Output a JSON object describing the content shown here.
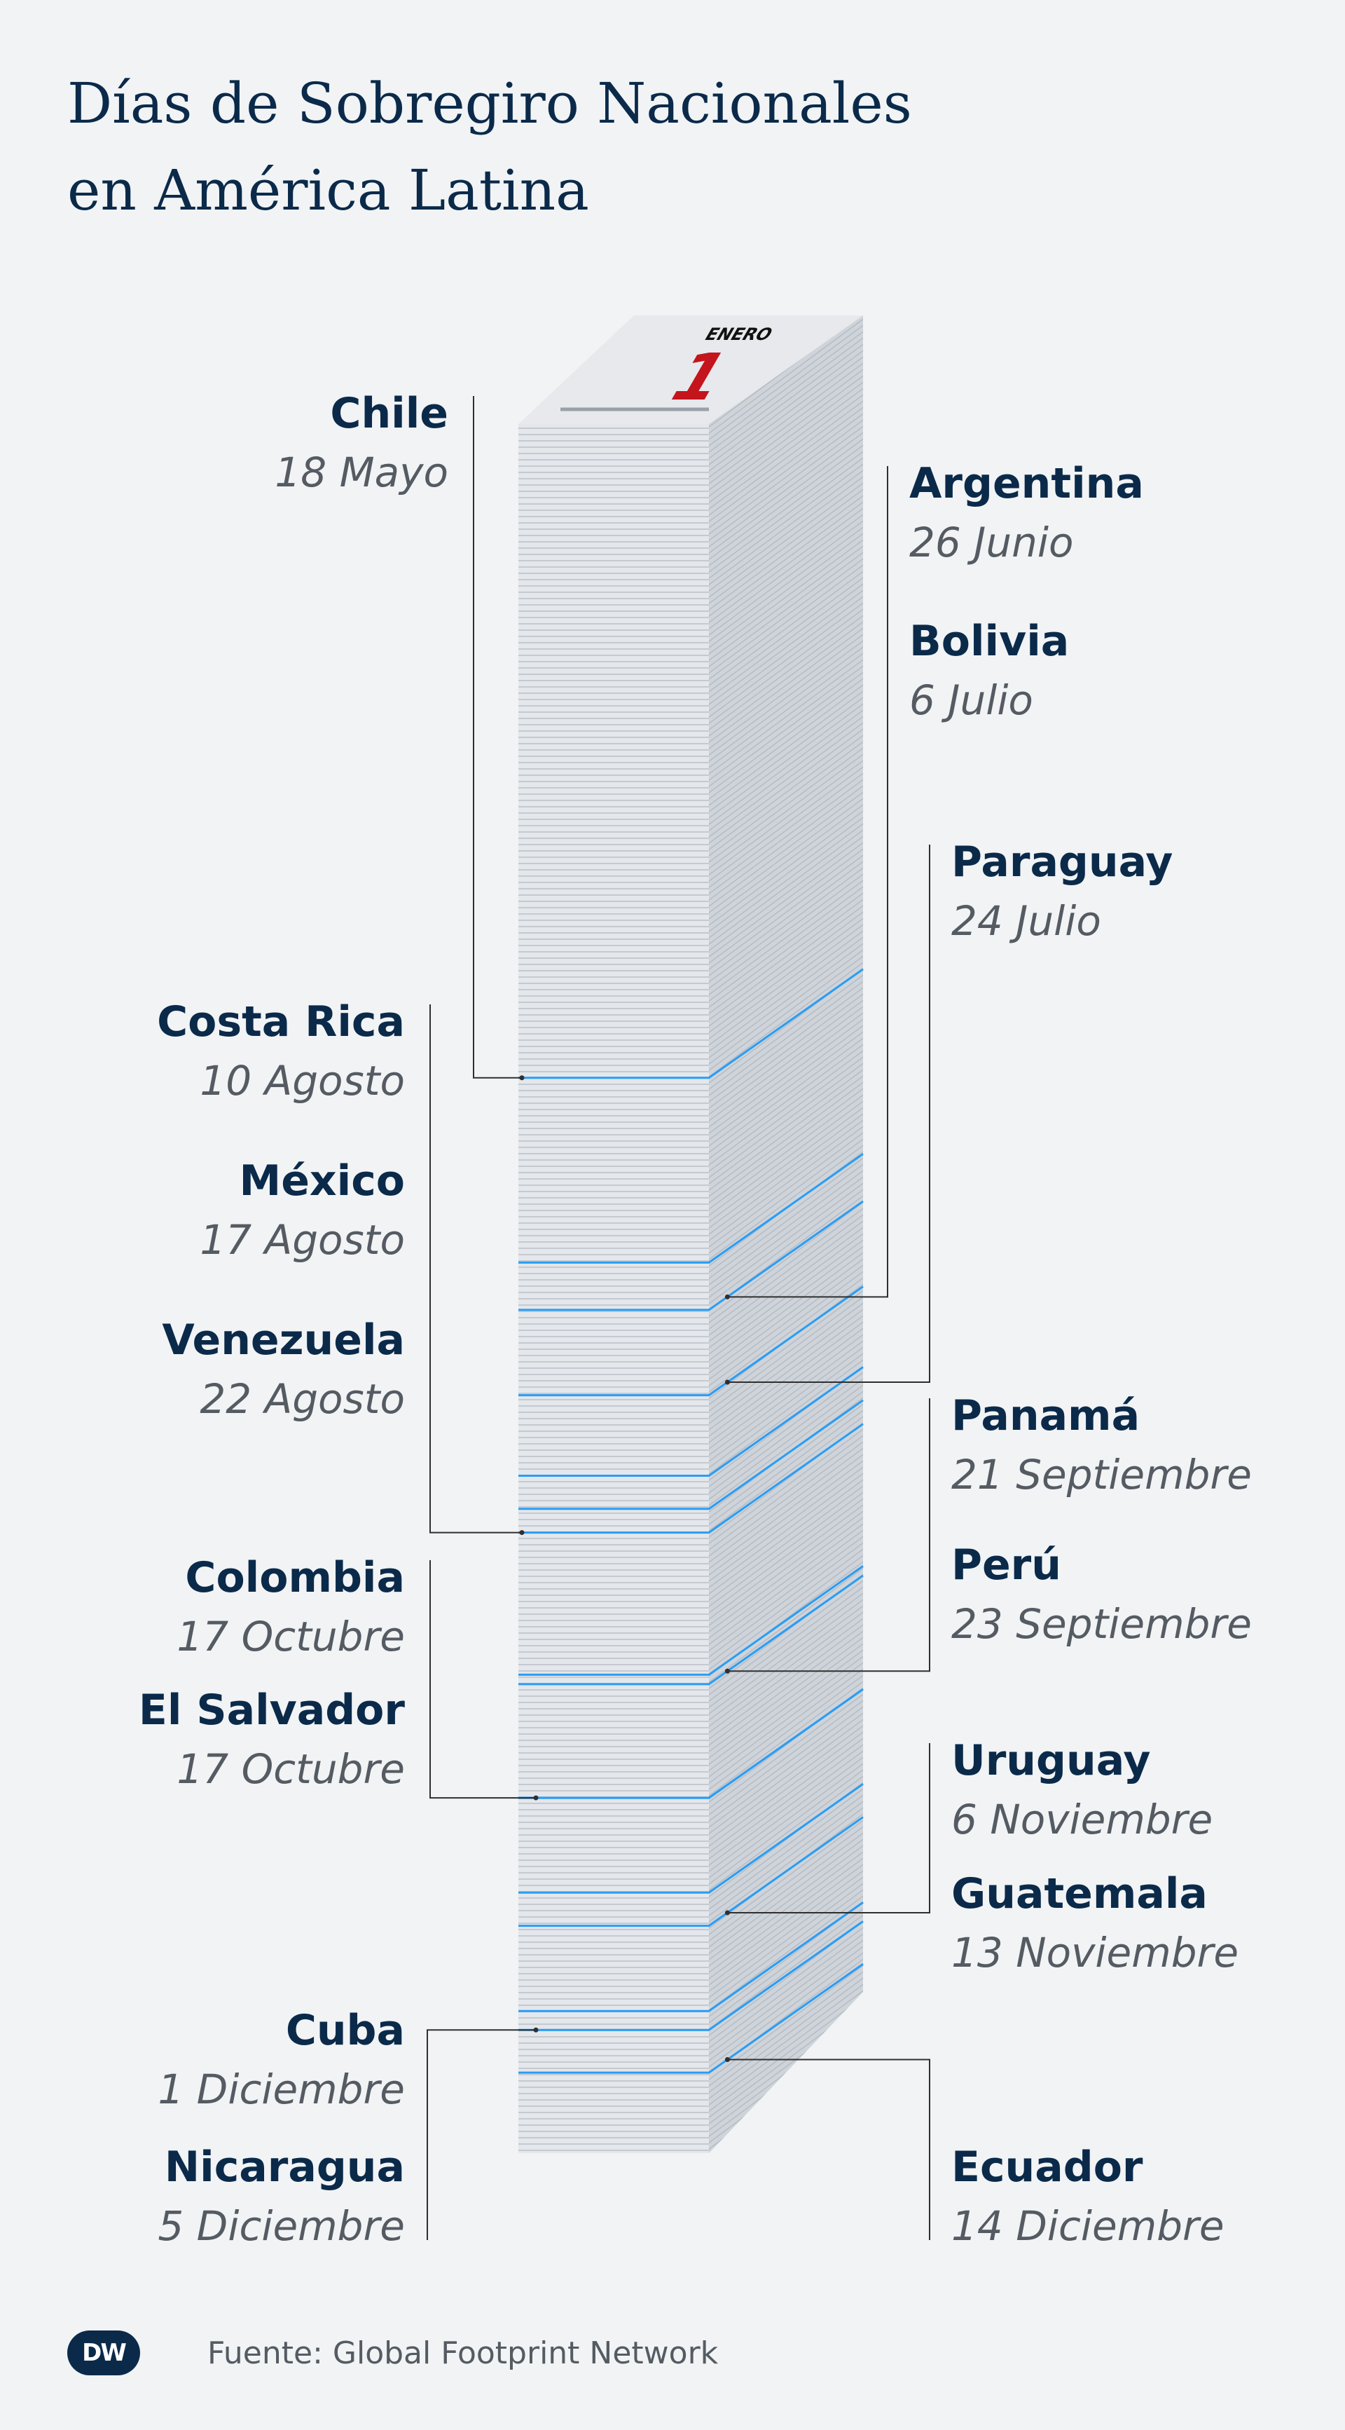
{
  "title_lines": [
    "Días de Sobregiro Nacionales",
    "en América Latina"
  ],
  "source": "Fuente: Global Footprint Network",
  "logo_text": "DW",
  "calendar": {
    "month": "ENERO",
    "day": "1"
  },
  "colors": {
    "title": "#0b2a4a",
    "date": "#555b62",
    "marker": "#2a9df4",
    "leader": "#2f2f2f",
    "accent_red": "#c4141c"
  },
  "chart_data": {
    "type": "timeline",
    "title": "Días de Sobregiro Nacionales en América Latina",
    "axis": "day of year (1 = 1 Enero)",
    "items": [
      {
        "country": "Chile",
        "date": "18 Mayo",
        "day": 138,
        "side": "left"
      },
      {
        "country": "Argentina",
        "date": "26 Junio",
        "day": 177,
        "side": "right"
      },
      {
        "country": "Bolivia",
        "date": "6 Julio",
        "day": 187,
        "side": "right"
      },
      {
        "country": "Paraguay",
        "date": "24 Julio",
        "day": 205,
        "side": "right"
      },
      {
        "country": "Costa Rica",
        "date": "10 Agosto",
        "day": 222,
        "side": "left"
      },
      {
        "country": "México",
        "date": "17 Agosto",
        "day": 229,
        "side": "left"
      },
      {
        "country": "Venezuela",
        "date": "22 Agosto",
        "day": 234,
        "side": "left"
      },
      {
        "country": "Panamá",
        "date": "21 Septiembre",
        "day": 264,
        "side": "right"
      },
      {
        "country": "Perú",
        "date": "23 Septiembre",
        "day": 266,
        "side": "right"
      },
      {
        "country": "Colombia",
        "date": "17 Octubre",
        "day": 290,
        "side": "left"
      },
      {
        "country": "El Salvador",
        "date": "17 Octubre",
        "day": 290,
        "side": "left"
      },
      {
        "country": "Uruguay",
        "date": "6 Noviembre",
        "day": 310,
        "side": "right"
      },
      {
        "country": "Guatemala",
        "date": "13 Noviembre",
        "day": 317,
        "side": "right"
      },
      {
        "country": "Cuba",
        "date": "1 Diciembre",
        "day": 335,
        "side": "left"
      },
      {
        "country": "Nicaragua",
        "date": "5 Diciembre",
        "day": 339,
        "side": "left"
      },
      {
        "country": "Ecuador",
        "date": "14 Diciembre",
        "day": 348,
        "side": "right"
      }
    ]
  }
}
